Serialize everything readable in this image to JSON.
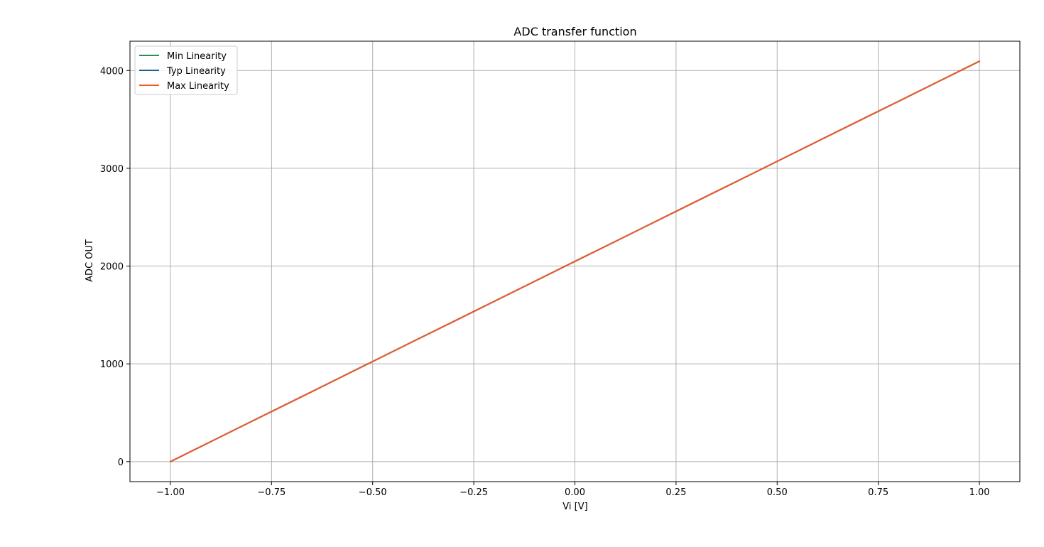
{
  "chart_data": {
    "type": "line",
    "title": "ADC transfer function",
    "xlabel": "Vi [V]",
    "ylabel": "ADC OUT",
    "xlim": [
      -1.1,
      1.1
    ],
    "ylim": [
      -204.75,
      4299.75
    ],
    "x_ticks": [
      -1.0,
      -0.75,
      -0.5,
      -0.25,
      0.0,
      0.25,
      0.5,
      0.75,
      1.0
    ],
    "x_tick_labels": [
      "−1.00",
      "−0.75",
      "−0.50",
      "−0.25",
      "0.00",
      "0.25",
      "0.50",
      "0.75",
      "1.00"
    ],
    "y_ticks": [
      0,
      1000,
      2000,
      3000,
      4000
    ],
    "y_tick_labels": [
      "0",
      "1000",
      "2000",
      "3000",
      "4000"
    ],
    "grid": true,
    "legend_position": "upper-left",
    "series": [
      {
        "name": "Min Linearity",
        "color": "#2e8b57",
        "x": [
          -1.0,
          -0.9,
          -0.8,
          -0.7,
          -0.6,
          -0.5,
          -0.4,
          -0.3,
          -0.2,
          -0.1,
          0.0,
          0.1,
          0.2,
          0.3,
          0.4,
          0.5,
          0.6,
          0.7,
          0.8,
          0.9,
          1.0
        ],
        "y": [
          0,
          205,
          410,
          614,
          819,
          1024,
          1229,
          1433,
          1638,
          1843,
          2048,
          2252,
          2457,
          2662,
          2866,
          3071,
          3276,
          3481,
          3685,
          3890,
          4095
        ]
      },
      {
        "name": "Typ Linearity",
        "color": "#1f5fa0",
        "x": [
          -1.0,
          -0.9,
          -0.8,
          -0.7,
          -0.6,
          -0.5,
          -0.4,
          -0.3,
          -0.2,
          -0.1,
          0.0,
          0.1,
          0.2,
          0.3,
          0.4,
          0.5,
          0.6,
          0.7,
          0.8,
          0.9,
          1.0
        ],
        "y": [
          0,
          205,
          410,
          614,
          819,
          1024,
          1229,
          1433,
          1638,
          1843,
          2048,
          2252,
          2457,
          2662,
          2866,
          3071,
          3276,
          3481,
          3685,
          3890,
          4095
        ]
      },
      {
        "name": "Max Linearity",
        "color": "#f05a28",
        "x": [
          -1.0,
          -0.9,
          -0.8,
          -0.7,
          -0.6,
          -0.5,
          -0.4,
          -0.3,
          -0.2,
          -0.1,
          0.0,
          0.1,
          0.2,
          0.3,
          0.4,
          0.5,
          0.6,
          0.7,
          0.8,
          0.9,
          1.0
        ],
        "y": [
          0,
          205,
          410,
          614,
          819,
          1024,
          1229,
          1433,
          1638,
          1843,
          2048,
          2252,
          2457,
          2662,
          2866,
          3071,
          3276,
          3481,
          3685,
          3890,
          4095
        ]
      }
    ]
  }
}
